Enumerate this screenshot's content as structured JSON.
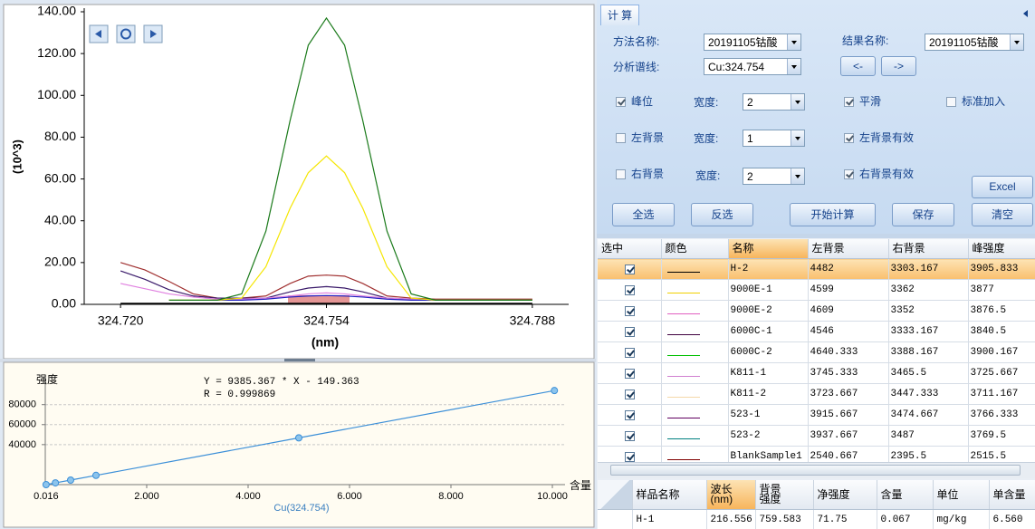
{
  "chart_data": [
    {
      "type": "line",
      "x": [
        324.72,
        324.724,
        324.728,
        324.732,
        324.736,
        324.74,
        324.744,
        324.748,
        324.751,
        324.754,
        324.757,
        324.76,
        324.764,
        324.768,
        324.772,
        324.776,
        324.78,
        324.784,
        324.788
      ],
      "series": [
        {
          "color": "#000000",
          "values": [
            0.5,
            0.5,
            0.5,
            0.5,
            0.5,
            0.5,
            0.5,
            0.5,
            0.5,
            0.5,
            0.5,
            0.5,
            0.5,
            0.5,
            0.5,
            0.5,
            0.5,
            0.5,
            0.5
          ]
        },
        {
          "color": "#a03030",
          "values": [
            20,
            16.5,
            11,
            5,
            3,
            3,
            4,
            10,
            13.5,
            14,
            13.5,
            10,
            4,
            3,
            2.5,
            2.5,
            2.5,
            2.5,
            2.5
          ]
        },
        {
          "color": "#3a1a6a",
          "values": [
            16,
            12,
            7,
            4,
            3,
            3,
            3,
            6,
            7.8,
            8.5,
            7.8,
            6,
            3,
            2.5,
            2,
            2,
            2,
            2,
            2
          ]
        },
        {
          "color": "#e080e0",
          "values": [
            10,
            7.5,
            5,
            3.5,
            2.5,
            2.5,
            3,
            4,
            5,
            5.5,
            5,
            4,
            3,
            2.5,
            2,
            2,
            2,
            2,
            2
          ]
        },
        {
          "color": "#2020c0",
          "values": [
            null,
            null,
            null,
            null,
            2,
            2,
            2.5,
            3.5,
            4,
            4.2,
            4,
            3.5,
            2.5,
            2,
            2,
            2,
            2,
            2,
            2
          ]
        },
        {
          "color": "#f5e600",
          "values": [
            null,
            null,
            2,
            2,
            2,
            3,
            18,
            46,
            63,
            71,
            63,
            46,
            18,
            3,
            2,
            2,
            2,
            2,
            2
          ]
        },
        {
          "color": "#1a7a1a",
          "values": [
            null,
            null,
            2,
            2,
            2,
            5,
            35,
            88,
            124,
            137,
            124,
            88,
            35,
            5,
            2,
            2,
            2,
            2,
            2
          ]
        }
      ],
      "xlim": [
        324.714,
        324.794
      ],
      "ylim": [
        0,
        140
      ],
      "xticks": [
        {
          "value": 324.72,
          "label": "324.720"
        },
        324.754,
        324.788
      ],
      "yticks": [
        {
          "value": 0,
          "label": "0.00"
        },
        {
          "value": 20,
          "label": "20.00"
        },
        {
          "value": 40,
          "label": "40.00"
        },
        {
          "value": 60,
          "label": "60.00"
        },
        {
          "value": 80,
          "label": "80.00"
        },
        {
          "value": 100,
          "label": "100.00"
        },
        {
          "value": 120,
          "label": "120.00"
        },
        {
          "value": 140,
          "label": "140.00"
        }
      ],
      "x_label": "(nm)",
      "y_label": "(10^3)",
      "grid": false
    },
    {
      "type": "line",
      "markers": true,
      "x": [
        0.016,
        0.2,
        0.5,
        1,
        5,
        10.04
      ],
      "series": [
        {
          "color": "#3b8fd8",
          "values": [
            1,
            1728,
            4543,
            9236,
            46777,
            94080
          ]
        }
      ],
      "xlim": [
        0,
        10.25
      ],
      "ylim": [
        0,
        106000
      ],
      "xticks": [
        0.016,
        {
          "value": 2,
          "label": "2.000"
        },
        {
          "value": 4,
          "label": "4.000"
        },
        {
          "value": 6,
          "label": "6.000"
        },
        {
          "value": 8,
          "label": "8.000"
        },
        {
          "value": 10,
          "label": "10.000"
        }
      ],
      "yticks": [
        40000,
        60000,
        80000
      ],
      "y_label": "强度",
      "x_label": "Cu(324.754)",
      "x_unit_label": "含量",
      "equation": "Y = 9385.367 * X - 149.363",
      "r": "R = 0.999869",
      "grid": true
    }
  ],
  "tab": "计 算",
  "form": {
    "method_label": "方法名称:",
    "method": "20191105钴酸",
    "result_label": "结果名称:",
    "result": "20191105钴酸",
    "line_label": "分析谱线:",
    "line": "Cu:324.754",
    "prev": "<-",
    "next": "->",
    "checks": [
      {
        "label": "峰位",
        "checked": true
      },
      {
        "label": "平滑",
        "checked": true
      },
      {
        "label": "标准加入",
        "checked": false
      },
      {
        "label": "左背景",
        "checked": false
      },
      {
        "label": "左背景有效",
        "checked": true
      },
      {
        "label": "右背景",
        "checked": false
      },
      {
        "label": "右背景有效",
        "checked": true
      }
    ],
    "widths": [
      {
        "label": "宽度:",
        "value": "2"
      },
      {
        "label": "宽度:",
        "value": "1"
      },
      {
        "label": "宽度:",
        "value": "2"
      }
    ],
    "buttons": [
      "Excel",
      "全选",
      "反选",
      "开始计算",
      "保存",
      "清空"
    ]
  },
  "table": {
    "columns": [
      "选中",
      "颜色",
      "名称",
      "左背景",
      "右背景",
      "峰强度"
    ],
    "rows": [
      {
        "checked": true,
        "color": "#000000",
        "name": "H-2",
        "left": "4482",
        "right": "3303.167",
        "peak": "3905.833"
      },
      {
        "checked": true,
        "color": "#f0d000",
        "name": "9000E-1",
        "left": "4599",
        "right": "3362",
        "peak": "3877"
      },
      {
        "checked": true,
        "color": "#e060c0",
        "name": "9000E-2",
        "left": "4609",
        "right": "3352",
        "peak": "3876.5"
      },
      {
        "checked": true,
        "color": "#400040",
        "name": "6000C-1",
        "left": "4546",
        "right": "3333.167",
        "peak": "3840.5"
      },
      {
        "checked": true,
        "color": "#00c000",
        "name": "6000C-2",
        "left": "4640.333",
        "right": "3388.167",
        "peak": "3900.167"
      },
      {
        "checked": true,
        "color": "#d080d0",
        "name": "K811-1",
        "left": "3745.333",
        "right": "3465.5",
        "peak": "3725.667"
      },
      {
        "checked": true,
        "color": "#f5d8a8",
        "name": "K811-2",
        "left": "3723.667",
        "right": "3447.333",
        "peak": "3711.167"
      },
      {
        "checked": true,
        "color": "#600060",
        "name": "523-1",
        "left": "3915.667",
        "right": "3474.667",
        "peak": "3766.333"
      },
      {
        "checked": true,
        "color": "#008080",
        "name": "523-2",
        "left": "3937.667",
        "right": "3487",
        "peak": "3769.5"
      },
      {
        "checked": true,
        "color": "#800000",
        "name": "BlankSample1",
        "left": "2540.667",
        "right": "2395.5",
        "peak": "2515.5"
      }
    ]
  },
  "result_table": {
    "columns": [
      "样品名称",
      "波长\n(nm)",
      "背景\n强度",
      "净强度",
      "含量",
      "单位",
      "单含量"
    ],
    "rows": [
      [
        "H-1",
        "216.556",
        "759.583",
        "71.75",
        "0.067",
        "mg/kg",
        "6.560"
      ]
    ]
  }
}
